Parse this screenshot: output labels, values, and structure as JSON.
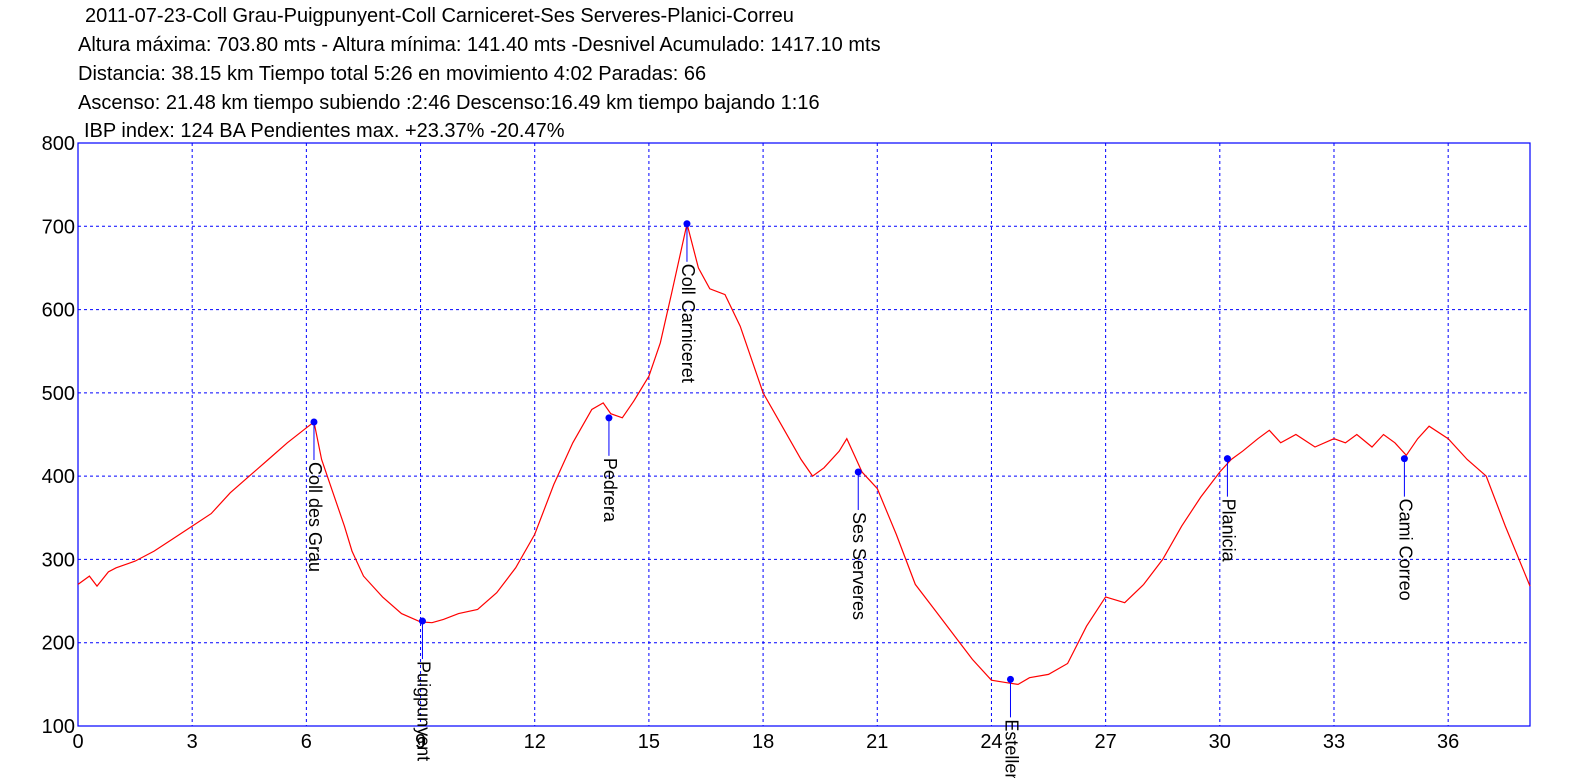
{
  "header": {
    "lines": [
      "2011-07-23-Coll Grau-Puigpunyent-Coll Carniceret-Ses Serveres-Planici-Correu",
      "Altura máxima: 703.80 mts - Altura mínima: 141.40 mts -Desnivel Acumulado: 1417.10 mts",
      "Distancia: 38.15 km  Tiempo total 5:26  en movimiento 4:02 Paradas: 66",
      "Ascenso: 21.48 km  tiempo subiendo :2:46  Descenso:16.49 km tiempo bajando 1:16",
      "IBP index: 124 BA  Pendientes max. +23.37%  -20.47%"
    ]
  },
  "chart_data": {
    "type": "line",
    "title": "2011-07-23-Coll Grau-Puigpunyent-Coll Carniceret-Ses Serveres-Planici-Correu",
    "xlabel": "",
    "ylabel": "",
    "xlim": [
      0,
      38.15
    ],
    "ylim": [
      100,
      800
    ],
    "xticks": [
      0,
      3,
      6,
      9,
      12,
      15,
      18,
      21,
      24,
      27,
      30,
      33,
      36
    ],
    "yticks": [
      100,
      200,
      300,
      400,
      500,
      600,
      700,
      800
    ],
    "grid": true,
    "colors": {
      "line": "#ff0000",
      "grid": "#0000ff",
      "frame": "#0000ff",
      "marker": "#0000ff"
    },
    "series": [
      {
        "x": [
          0,
          0.3,
          0.5,
          0.8,
          1.0,
          1.5,
          2.0,
          2.5,
          3.0,
          3.5,
          4.0,
          4.5,
          5.0,
          5.5,
          6.0,
          6.2,
          6.4,
          6.7,
          7.0,
          7.2,
          7.5,
          8.0,
          8.5,
          9.0,
          9.3,
          9.6,
          10.0,
          10.5,
          11.0,
          11.5,
          12.0,
          12.5,
          13.0,
          13.5,
          13.8,
          14.0,
          14.3,
          14.6,
          15.0,
          15.3,
          15.6,
          16.0,
          16.3,
          16.6,
          17.0,
          17.4,
          18.0,
          18.5,
          19.0,
          19.3,
          19.6,
          20.0,
          20.2,
          20.4,
          20.6,
          20.8,
          21.0,
          21.5,
          22.0,
          22.5,
          23.0,
          23.5,
          24.0,
          24.4,
          24.7,
          25.0,
          25.5,
          26.0,
          26.5,
          27.0,
          27.5,
          28.0,
          28.5,
          29.0,
          29.5,
          30.0,
          30.3,
          30.6,
          31.0,
          31.3,
          31.6,
          32.0,
          32.5,
          33.0,
          33.3,
          33.6,
          34.0,
          34.3,
          34.6,
          34.9,
          35.2,
          35.5,
          36.0,
          36.5,
          37.0,
          37.5,
          38.15
        ],
        "y": [
          270,
          280,
          268,
          285,
          290,
          298,
          310,
          325,
          340,
          355,
          380,
          400,
          420,
          440,
          458,
          465,
          420,
          380,
          340,
          310,
          280,
          255,
          235,
          225,
          224,
          228,
          235,
          240,
          260,
          290,
          330,
          390,
          440,
          480,
          488,
          475,
          470,
          490,
          520,
          560,
          620,
          703,
          650,
          625,
          618,
          580,
          500,
          460,
          420,
          400,
          410,
          430,
          445,
          425,
          405,
          395,
          385,
          330,
          270,
          240,
          210,
          180,
          155,
          152,
          150,
          158,
          162,
          175,
          220,
          255,
          248,
          270,
          300,
          340,
          375,
          405,
          420,
          430,
          445,
          455,
          440,
          450,
          435,
          445,
          440,
          450,
          435,
          450,
          440,
          425,
          445,
          460,
          445,
          420,
          400,
          340,
          268
        ]
      }
    ],
    "waypoints": [
      {
        "name": "Coll des Grau",
        "x": 6.2,
        "y": 465
      },
      {
        "name": "Puigpunyent",
        "x": 9.05,
        "y": 226
      },
      {
        "name": "Pedrera",
        "x": 13.95,
        "y": 470
      },
      {
        "name": "Coll Carniceret",
        "x": 16.0,
        "y": 703
      },
      {
        "name": "Ses Serveres",
        "x": 20.5,
        "y": 405
      },
      {
        "name": "Estellencs",
        "x": 24.5,
        "y": 156
      },
      {
        "name": "Planicia",
        "x": 30.2,
        "y": 421
      },
      {
        "name": "Cami Correo",
        "x": 34.85,
        "y": 421
      }
    ]
  }
}
